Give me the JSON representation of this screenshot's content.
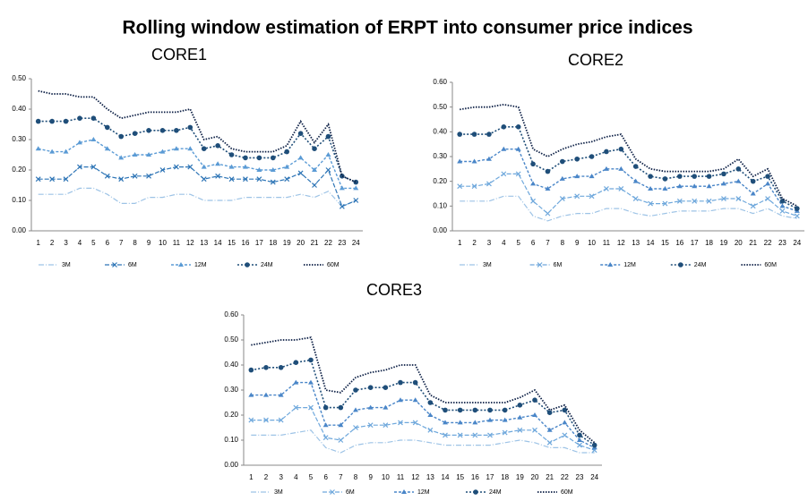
{
  "title": "Rolling window estimation of ERPT into consumer price indices",
  "chart_data": [
    {
      "type": "line",
      "title": "CORE1",
      "categories": [
        "1",
        "2",
        "3",
        "4",
        "5",
        "6",
        "7",
        "8",
        "9",
        "10",
        "11",
        "12",
        "13",
        "14",
        "15",
        "16",
        "17",
        "18",
        "19",
        "20",
        "21",
        "22",
        "23",
        "24"
      ],
      "ylim": [
        0,
        0.5
      ],
      "yticks": [
        {
          "value": 0,
          "label": "0.00"
        },
        {
          "value": 0.1,
          "label": "0.10"
        },
        {
          "value": 0.2,
          "label": "0.20"
        },
        {
          "value": 0.3,
          "label": "0.30"
        },
        {
          "value": 0.4,
          "label": "0.40"
        },
        {
          "value": 0.5,
          "label": "0.50"
        }
      ],
      "series": [
        {
          "name": "3M",
          "color": "#9dc3e6",
          "values": [
            0.12,
            0.12,
            0.12,
            0.14,
            0.14,
            0.12,
            0.09,
            0.09,
            0.11,
            0.11,
            0.12,
            0.12,
            0.1,
            0.1,
            0.1,
            0.11,
            0.11,
            0.11,
            0.11,
            0.12,
            0.11,
            0.13,
            0.08,
            0.1
          ]
        },
        {
          "name": "6M",
          "color": "#2e75b6",
          "values": [
            0.17,
            0.17,
            0.17,
            0.21,
            0.21,
            0.18,
            0.17,
            0.18,
            0.18,
            0.2,
            0.21,
            0.21,
            0.17,
            0.18,
            0.17,
            0.17,
            0.17,
            0.16,
            0.17,
            0.19,
            0.15,
            0.2,
            0.08,
            0.1
          ]
        },
        {
          "name": "12M",
          "color": "#5b9bd5",
          "values": [
            0.27,
            0.26,
            0.26,
            0.29,
            0.3,
            0.27,
            0.24,
            0.25,
            0.25,
            0.26,
            0.27,
            0.27,
            0.21,
            0.22,
            0.21,
            0.21,
            0.2,
            0.2,
            0.21,
            0.24,
            0.2,
            0.25,
            0.14,
            0.14
          ]
        },
        {
          "name": "24M",
          "color": "#1f4e79",
          "values": [
            0.36,
            0.36,
            0.36,
            0.37,
            0.37,
            0.34,
            0.31,
            0.32,
            0.33,
            0.33,
            0.33,
            0.34,
            0.27,
            0.28,
            0.25,
            0.24,
            0.24,
            0.24,
            0.26,
            0.32,
            0.27,
            0.31,
            0.18,
            0.16
          ]
        },
        {
          "name": "60M",
          "color": "#0c1f45",
          "values": [
            0.46,
            0.45,
            0.45,
            0.44,
            0.44,
            0.4,
            0.37,
            0.38,
            0.39,
            0.39,
            0.39,
            0.4,
            0.3,
            0.31,
            0.27,
            0.26,
            0.26,
            0.26,
            0.28,
            0.36,
            0.29,
            0.35,
            0.18,
            0.16
          ]
        }
      ]
    },
    {
      "type": "line",
      "title": "CORE2",
      "categories": [
        "1",
        "2",
        "3",
        "4",
        "5",
        "6",
        "7",
        "8",
        "9",
        "10",
        "11",
        "12",
        "13",
        "14",
        "15",
        "16",
        "17",
        "18",
        "19",
        "20",
        "21",
        "22",
        "23",
        "24"
      ],
      "ylim": [
        0,
        0.6
      ],
      "yticks": [
        {
          "value": 0,
          "label": "0.00"
        },
        {
          "value": 0.1,
          "label": "0.10"
        },
        {
          "value": 0.2,
          "label": "0.20"
        },
        {
          "value": 0.3,
          "label": "0.30"
        },
        {
          "value": 0.4,
          "label": "0.40"
        },
        {
          "value": 0.5,
          "label": "0.50"
        },
        {
          "value": 0.6,
          "label": "0.60"
        }
      ],
      "series": [
        {
          "name": "3M",
          "color": "#9dc3e6",
          "values": [
            0.12,
            0.12,
            0.12,
            0.14,
            0.14,
            0.06,
            0.04,
            0.06,
            0.07,
            0.07,
            0.09,
            0.09,
            0.07,
            0.06,
            0.07,
            0.08,
            0.08,
            0.08,
            0.09,
            0.09,
            0.07,
            0.09,
            0.06,
            0.05
          ]
        },
        {
          "name": "6M",
          "color": "#6fa8dc",
          "values": [
            0.18,
            0.18,
            0.19,
            0.23,
            0.23,
            0.12,
            0.07,
            0.13,
            0.14,
            0.14,
            0.17,
            0.17,
            0.13,
            0.11,
            0.11,
            0.12,
            0.12,
            0.12,
            0.13,
            0.13,
            0.1,
            0.13,
            0.08,
            0.06
          ]
        },
        {
          "name": "12M",
          "color": "#4a86c8",
          "values": [
            0.28,
            0.28,
            0.29,
            0.33,
            0.33,
            0.19,
            0.17,
            0.21,
            0.22,
            0.22,
            0.25,
            0.25,
            0.2,
            0.17,
            0.17,
            0.18,
            0.18,
            0.18,
            0.19,
            0.2,
            0.15,
            0.19,
            0.1,
            0.08
          ]
        },
        {
          "name": "24M",
          "color": "#1f4e79",
          "values": [
            0.39,
            0.39,
            0.39,
            0.42,
            0.42,
            0.27,
            0.24,
            0.28,
            0.29,
            0.3,
            0.32,
            0.33,
            0.26,
            0.22,
            0.21,
            0.22,
            0.22,
            0.22,
            0.23,
            0.25,
            0.2,
            0.22,
            0.12,
            0.09
          ]
        },
        {
          "name": "60M",
          "color": "#0c1f45",
          "values": [
            0.49,
            0.5,
            0.5,
            0.51,
            0.5,
            0.33,
            0.3,
            0.33,
            0.35,
            0.36,
            0.38,
            0.39,
            0.29,
            0.25,
            0.24,
            0.24,
            0.24,
            0.24,
            0.25,
            0.29,
            0.22,
            0.25,
            0.13,
            0.1
          ]
        }
      ]
    },
    {
      "type": "line",
      "title": "CORE3",
      "categories": [
        "1",
        "2",
        "3",
        "4",
        "5",
        "6",
        "7",
        "8",
        "9",
        "10",
        "11",
        "12",
        "13",
        "14",
        "15",
        "16",
        "17",
        "18",
        "19",
        "20",
        "21",
        "22",
        "23",
        "24"
      ],
      "ylim": [
        0,
        0.6
      ],
      "yticks": [
        {
          "value": 0,
          "label": "0.00"
        },
        {
          "value": 0.1,
          "label": "0.10"
        },
        {
          "value": 0.2,
          "label": "0.20"
        },
        {
          "value": 0.3,
          "label": "0.30"
        },
        {
          "value": 0.4,
          "label": "0.40"
        },
        {
          "value": 0.5,
          "label": "0.50"
        },
        {
          "value": 0.6,
          "label": "0.60"
        }
      ],
      "series": [
        {
          "name": "3M",
          "color": "#9dc3e6",
          "values": [
            0.12,
            0.12,
            0.12,
            0.13,
            0.14,
            0.07,
            0.05,
            0.08,
            0.09,
            0.09,
            0.1,
            0.1,
            0.09,
            0.08,
            0.08,
            0.08,
            0.08,
            0.09,
            0.1,
            0.09,
            0.07,
            0.07,
            0.05,
            0.05
          ]
        },
        {
          "name": "6M",
          "color": "#6fa8dc",
          "values": [
            0.18,
            0.18,
            0.18,
            0.23,
            0.23,
            0.11,
            0.1,
            0.15,
            0.16,
            0.16,
            0.17,
            0.17,
            0.14,
            0.12,
            0.12,
            0.12,
            0.12,
            0.13,
            0.14,
            0.14,
            0.09,
            0.12,
            0.08,
            0.06
          ]
        },
        {
          "name": "12M",
          "color": "#4a86c8",
          "values": [
            0.28,
            0.28,
            0.28,
            0.33,
            0.33,
            0.16,
            0.16,
            0.22,
            0.23,
            0.23,
            0.26,
            0.26,
            0.2,
            0.17,
            0.17,
            0.17,
            0.18,
            0.18,
            0.19,
            0.2,
            0.14,
            0.17,
            0.1,
            0.07
          ]
        },
        {
          "name": "24M",
          "color": "#1f4e79",
          "values": [
            0.38,
            0.39,
            0.39,
            0.41,
            0.42,
            0.23,
            0.23,
            0.3,
            0.31,
            0.31,
            0.33,
            0.33,
            0.25,
            0.22,
            0.22,
            0.22,
            0.22,
            0.22,
            0.24,
            0.26,
            0.21,
            0.22,
            0.12,
            0.08
          ]
        },
        {
          "name": "60M",
          "color": "#0c1f45",
          "values": [
            0.48,
            0.49,
            0.5,
            0.5,
            0.51,
            0.3,
            0.29,
            0.35,
            0.37,
            0.38,
            0.4,
            0.4,
            0.28,
            0.25,
            0.25,
            0.25,
            0.25,
            0.25,
            0.27,
            0.3,
            0.22,
            0.24,
            0.14,
            0.09
          ]
        }
      ]
    }
  ]
}
